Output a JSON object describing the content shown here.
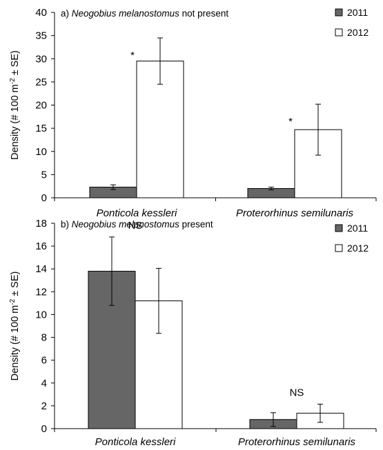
{
  "chart_data": [
    {
      "type": "bar",
      "panel_label": "a)",
      "title": {
        "italic": "Neogobius melanostomus",
        "rest": "not present"
      },
      "ylabel": {
        "pre": "Density (# 100 m",
        "sup": "-2",
        "post": " ± SE)"
      },
      "ylim": [
        0,
        40
      ],
      "yticks": [
        0,
        5,
        10,
        15,
        20,
        25,
        30,
        35,
        40
      ],
      "categories": [
        "Ponticola kessleri",
        "Proterorhinus semilunaris"
      ],
      "series": [
        {
          "name": "2011",
          "color": "#666666",
          "values": [
            2.3,
            2.0
          ],
          "se": [
            0.5,
            0.3
          ]
        },
        {
          "name": "2012",
          "color": "#ffffff",
          "values": [
            29.5,
            14.7
          ],
          "se": [
            5.0,
            5.5
          ]
        }
      ],
      "significance": [
        "*",
        "*"
      ],
      "legend_position": "top-right"
    },
    {
      "type": "bar",
      "panel_label": "b)",
      "title": {
        "italic": "Neogobius melanostomus",
        "rest": "present"
      },
      "ylabel": {
        "pre": "Density (# 100 m",
        "sup": "-2",
        "post": " ± SE)"
      },
      "ylim": [
        0,
        18
      ],
      "yticks": [
        0,
        2,
        4,
        6,
        8,
        10,
        12,
        14,
        16,
        18
      ],
      "categories": [
        "Ponticola kessleri",
        "Proterorhinus semilunaris"
      ],
      "series": [
        {
          "name": "2011",
          "color": "#666666",
          "values": [
            13.8,
            0.8
          ],
          "se": [
            3.0,
            0.6
          ]
        },
        {
          "name": "2012",
          "color": "#ffffff",
          "values": [
            11.2,
            1.35
          ],
          "se": [
            2.85,
            0.8
          ]
        }
      ],
      "significance": [
        "NS",
        "NS"
      ],
      "legend_position": "top-right"
    }
  ]
}
